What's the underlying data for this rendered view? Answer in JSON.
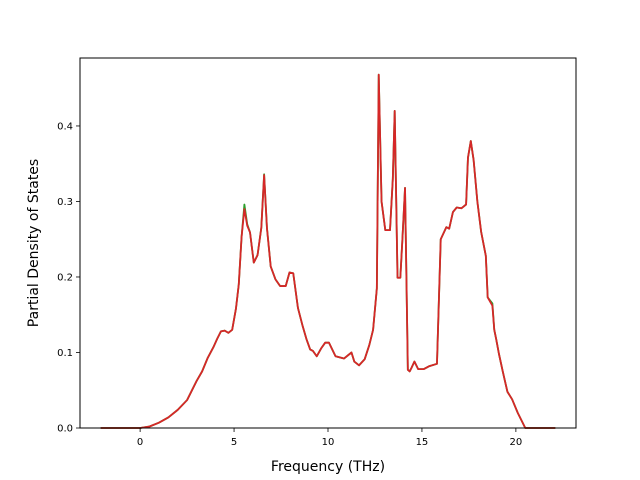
{
  "chart_data": {
    "type": "line",
    "title": "",
    "xlabel": "Frequency (THz)",
    "ylabel": "Partial Density of States",
    "xlim": [
      -3.2,
      23.2
    ],
    "ylim": [
      0,
      0.49
    ],
    "xticks": [
      0,
      5,
      10,
      15,
      20
    ],
    "xtick_labels": [
      "0",
      "5",
      "10",
      "15",
      "20"
    ],
    "yticks": [
      0.0,
      0.1,
      0.2,
      0.3,
      0.4
    ],
    "ytick_labels": [
      "0.0",
      "0.1",
      "0.2",
      "0.3",
      "0.4"
    ],
    "grid": false,
    "legend": "none",
    "series": [
      {
        "color": "#2ca02c",
        "x": [
          -2.1,
          0,
          0.5,
          1,
          1.5,
          2,
          2.5,
          3,
          3.3,
          3.6,
          3.9,
          4.1,
          4.3,
          4.5,
          4.7,
          4.9,
          5.1,
          5.25,
          5.4,
          5.55,
          5.7,
          5.85,
          6.05,
          6.25,
          6.45,
          6.6,
          6.75,
          6.95,
          7.2,
          7.45,
          7.75,
          7.95,
          8.15,
          8.4,
          8.65,
          8.85,
          9.05,
          9.2,
          9.4,
          9.65,
          9.85,
          10.05,
          10.4,
          10.85,
          11.1,
          11.25,
          11.4,
          11.65,
          11.95,
          12.2,
          12.4,
          12.6,
          12.7,
          12.85,
          13.05,
          13.3,
          13.45,
          13.55,
          13.7,
          13.85,
          13.95,
          14.1,
          14.25,
          14.35,
          14.45,
          14.6,
          14.8,
          15.1,
          15.4,
          15.8,
          16.0,
          16.3,
          16.45,
          16.65,
          16.85,
          17.1,
          17.35,
          17.45,
          17.6,
          17.75,
          17.95,
          18.15,
          18.4,
          18.5,
          18.75,
          18.85,
          18.95,
          19.1,
          19.3,
          19.55,
          19.8,
          20.1,
          20.5,
          21,
          21.5,
          22.1
        ],
        "y": [
          0,
          0,
          0.002,
          0.007,
          0.014,
          0.024,
          0.037,
          0.062,
          0.075,
          0.093,
          0.107,
          0.118,
          0.128,
          0.129,
          0.126,
          0.13,
          0.158,
          0.19,
          0.253,
          0.296,
          0.27,
          0.259,
          0.219,
          0.229,
          0.265,
          0.336,
          0.265,
          0.214,
          0.197,
          0.188,
          0.188,
          0.206,
          0.205,
          0.159,
          0.135,
          0.118,
          0.104,
          0.102,
          0.095,
          0.106,
          0.113,
          0.113,
          0.095,
          0.092,
          0.097,
          0.1,
          0.088,
          0.083,
          0.091,
          0.11,
          0.13,
          0.185,
          0.468,
          0.3,
          0.262,
          0.262,
          0.33,
          0.42,
          0.199,
          0.199,
          0.245,
          0.318,
          0.077,
          0.075,
          0.08,
          0.088,
          0.078,
          0.078,
          0.082,
          0.085,
          0.25,
          0.266,
          0.264,
          0.286,
          0.292,
          0.291,
          0.296,
          0.358,
          0.38,
          0.355,
          0.3,
          0.26,
          0.228,
          0.173,
          0.165,
          0.13,
          0.118,
          0.098,
          0.075,
          0.048,
          0.038,
          0.02,
          0,
          0,
          0,
          0
        ]
      },
      {
        "color": "#d62728",
        "x": [
          -2.1,
          0,
          0.5,
          1,
          1.5,
          2,
          2.5,
          3,
          3.3,
          3.6,
          3.9,
          4.1,
          4.3,
          4.5,
          4.7,
          4.9,
          5.1,
          5.25,
          5.4,
          5.55,
          5.7,
          5.85,
          6.05,
          6.25,
          6.45,
          6.6,
          6.75,
          6.95,
          7.2,
          7.45,
          7.75,
          7.95,
          8.15,
          8.4,
          8.65,
          8.85,
          9.05,
          9.2,
          9.4,
          9.65,
          9.85,
          10.05,
          10.4,
          10.85,
          11.1,
          11.25,
          11.4,
          11.65,
          11.95,
          12.2,
          12.4,
          12.6,
          12.7,
          12.85,
          13.05,
          13.3,
          13.45,
          13.55,
          13.7,
          13.85,
          13.95,
          14.1,
          14.25,
          14.35,
          14.45,
          14.6,
          14.8,
          15.1,
          15.4,
          15.8,
          16.0,
          16.3,
          16.45,
          16.65,
          16.85,
          17.1,
          17.35,
          17.45,
          17.6,
          17.75,
          17.95,
          18.15,
          18.4,
          18.5,
          18.75,
          18.85,
          18.95,
          19.1,
          19.3,
          19.55,
          19.8,
          20.1,
          20.5,
          21,
          21.5,
          22.1
        ],
        "y": [
          0,
          0,
          0.002,
          0.007,
          0.014,
          0.024,
          0.037,
          0.062,
          0.075,
          0.093,
          0.107,
          0.118,
          0.128,
          0.129,
          0.126,
          0.13,
          0.158,
          0.19,
          0.253,
          0.29,
          0.268,
          0.259,
          0.219,
          0.229,
          0.265,
          0.335,
          0.265,
          0.214,
          0.197,
          0.188,
          0.188,
          0.206,
          0.205,
          0.159,
          0.135,
          0.118,
          0.104,
          0.102,
          0.095,
          0.106,
          0.113,
          0.113,
          0.095,
          0.092,
          0.097,
          0.1,
          0.088,
          0.083,
          0.091,
          0.11,
          0.13,
          0.185,
          0.468,
          0.3,
          0.262,
          0.262,
          0.33,
          0.42,
          0.199,
          0.199,
          0.245,
          0.318,
          0.077,
          0.075,
          0.08,
          0.088,
          0.078,
          0.078,
          0.082,
          0.085,
          0.25,
          0.266,
          0.264,
          0.286,
          0.292,
          0.291,
          0.296,
          0.358,
          0.38,
          0.355,
          0.3,
          0.26,
          0.228,
          0.173,
          0.162,
          0.13,
          0.118,
          0.098,
          0.075,
          0.048,
          0.038,
          0.02,
          0,
          0,
          0,
          0
        ]
      }
    ]
  }
}
